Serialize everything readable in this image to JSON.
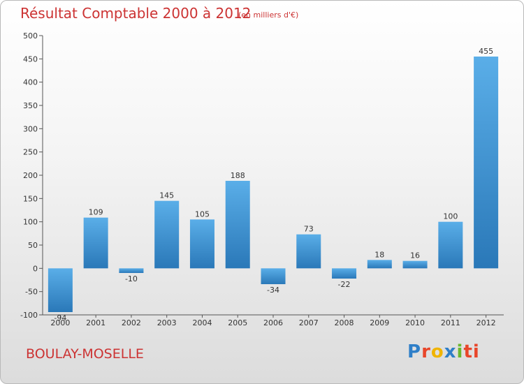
{
  "header": {
    "title": "Résultat Comptable 2000 à 2012",
    "subtitle": "(en milliers d'€)"
  },
  "footer": {
    "city": "BOULAY-MOSELLE",
    "logo_letters": [
      "P",
      "r",
      "o",
      "x",
      "i",
      "ti"
    ]
  },
  "colors": {
    "title": "#cc3333",
    "bar_light": "#5aaee8",
    "bar_dark": "#2a78b8"
  },
  "chart_data": {
    "type": "bar",
    "title": "Résultat Comptable 2000 à 2012",
    "subtitle": "(en milliers d'€)",
    "categories": [
      "2000",
      "2001",
      "2002",
      "2003",
      "2004",
      "2005",
      "2006",
      "2007",
      "2008",
      "2009",
      "2010",
      "2011",
      "2012"
    ],
    "values": [
      -94,
      109,
      -10,
      145,
      105,
      188,
      -34,
      73,
      -22,
      18,
      16,
      100,
      455
    ],
    "data_labels": [
      "-94",
      "109",
      "-10",
      "145",
      "105",
      "188",
      "-34",
      "73",
      "-22",
      "18",
      "16",
      "100",
      "455"
    ],
    "yticks": [
      -100,
      -50,
      0,
      50,
      100,
      150,
      200,
      250,
      300,
      350,
      400,
      450,
      500
    ],
    "ylim": [
      -100,
      500
    ],
    "grid": false,
    "xlabel": "",
    "ylabel": ""
  }
}
